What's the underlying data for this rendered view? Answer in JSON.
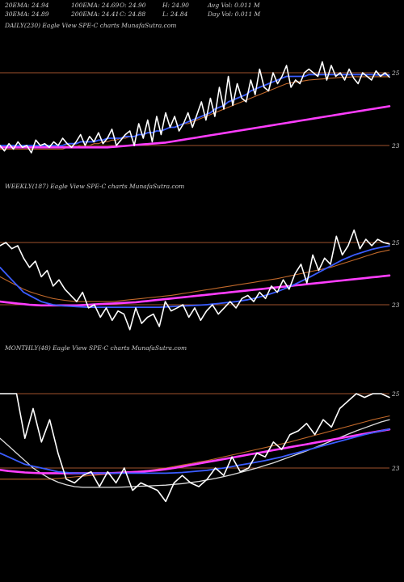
{
  "header": {
    "row1": [
      {
        "id": "ema20",
        "text": "20EMA: 24.94"
      },
      {
        "id": "ema100",
        "text": "100EMA: 24.69"
      },
      {
        "id": "open",
        "text": "O: 24.90"
      },
      {
        "id": "high",
        "text": "H: 24.90"
      },
      {
        "id": "avgvol",
        "text": "Avg Vol: 0.011 M"
      }
    ],
    "row2": [
      {
        "id": "ema30",
        "text": "30EMA: 24.89"
      },
      {
        "id": "ema200",
        "text": "200EMA: 24.41"
      },
      {
        "id": "close",
        "text": "C: 24.88"
      },
      {
        "id": "low",
        "text": "L: 24.84"
      },
      {
        "id": "dayvol",
        "text": "Day Vol: 0.011 M"
      }
    ]
  },
  "colors": {
    "background": "#000000",
    "price": "#ffffff",
    "ema_blue": "#3a5cff",
    "ema_magenta": "#ff3dff",
    "ema_orange": "#c0682a",
    "ema_white": "#dddddd",
    "reference_line": "#a0522d"
  },
  "chart_data": [
    {
      "type": "line",
      "title": "DAILY(230) Eagle View SPE-C charts MunafaSutra.com",
      "yticks": [
        "25",
        "23"
      ],
      "series": [
        {
          "key": "price",
          "values": [
            23.0,
            22.85,
            23.05,
            22.9,
            23.1,
            22.95,
            23.0,
            22.8,
            23.15,
            23.0,
            23.05,
            22.95,
            23.1,
            23.0,
            23.2,
            23.05,
            22.95,
            23.1,
            23.3,
            23.0,
            23.25,
            23.1,
            23.35,
            23.05,
            23.2,
            23.45,
            23.0,
            23.15,
            23.3,
            23.4,
            23.0,
            23.6,
            23.2,
            23.7,
            23.1,
            23.8,
            23.3,
            23.9,
            23.5,
            23.8,
            23.4,
            23.6,
            23.9,
            23.5,
            23.85,
            24.2,
            23.7,
            24.3,
            23.8,
            24.6,
            24.0,
            24.9,
            24.1,
            24.7,
            24.3,
            24.2,
            24.8,
            24.4,
            25.1,
            24.6,
            24.5,
            25.0,
            24.7,
            24.9,
            25.2,
            24.6,
            24.8,
            24.7,
            25.0,
            25.1,
            25.0,
            24.9,
            25.3,
            24.8,
            25.2,
            24.9,
            25.0,
            24.8,
            25.1,
            24.85,
            24.7,
            25.0,
            24.9,
            24.8,
            25.05,
            24.9,
            25.0,
            24.88
          ]
        },
        {
          "key": "ema_blue",
          "values": [
            23.0,
            23.0,
            23.0,
            23.0,
            23.0,
            23.0,
            23.0,
            23.0,
            23.0,
            23.0,
            23.0,
            23.0,
            23.0,
            23.0,
            23.0,
            23.05,
            23.05,
            23.05,
            23.1,
            23.1,
            23.1,
            23.1,
            23.15,
            23.15,
            23.2,
            23.2,
            23.2,
            23.2,
            23.25,
            23.25,
            23.25,
            23.3,
            23.3,
            23.35,
            23.35,
            23.4,
            23.4,
            23.45,
            23.5,
            23.5,
            23.55,
            23.6,
            23.65,
            23.7,
            23.75,
            23.8,
            23.85,
            23.9,
            24.0,
            24.05,
            24.1,
            24.2,
            24.25,
            24.3,
            24.35,
            24.4,
            24.5,
            24.55,
            24.6,
            24.65,
            24.7,
            24.75,
            24.8,
            24.85,
            24.9,
            24.9,
            24.9,
            24.9,
            24.9,
            24.95,
            24.95,
            24.95,
            24.95,
            24.95,
            24.95,
            24.95,
            24.95,
            24.95,
            24.95,
            24.95,
            24.95,
            24.95,
            24.95,
            24.95,
            24.94,
            24.94,
            24.94,
            24.94
          ]
        },
        {
          "key": "ema_orange",
          "values": [
            22.9,
            22.9,
            22.9,
            22.9,
            22.9,
            22.9,
            22.9,
            22.9,
            22.9,
            22.9,
            22.9,
            22.9,
            22.9,
            22.9,
            22.9,
            22.95,
            22.95,
            22.95,
            23.0,
            23.0,
            23.0,
            23.05,
            23.05,
            23.1,
            23.1,
            23.15,
            23.15,
            23.2,
            23.2,
            23.25,
            23.25,
            23.3,
            23.3,
            23.35,
            23.35,
            23.4,
            23.4,
            23.45,
            23.5,
            23.5,
            23.55,
            23.6,
            23.6,
            23.65,
            23.7,
            23.75,
            23.8,
            23.85,
            23.9,
            23.95,
            24.0,
            24.05,
            24.1,
            24.15,
            24.2,
            24.25,
            24.3,
            24.35,
            24.4,
            24.45,
            24.5,
            24.55,
            24.6,
            24.65,
            24.7,
            24.72,
            24.74,
            24.76,
            24.78,
            24.8,
            24.81,
            24.82,
            24.83,
            24.84,
            24.85,
            24.86,
            24.87,
            24.88,
            24.88,
            24.89,
            24.89,
            24.89,
            24.89,
            24.89,
            24.89,
            24.89,
            24.89,
            24.89
          ]
        },
        {
          "key": "ema_magenta",
          "values": [
            22.95,
            22.95,
            22.95,
            22.95,
            22.95,
            22.95,
            22.95,
            22.95,
            22.95,
            22.95,
            22.95,
            22.95,
            22.95,
            22.95,
            22.95,
            22.95,
            22.95,
            22.95,
            22.95,
            22.95,
            22.95,
            22.95,
            22.95,
            22.95,
            22.95,
            22.96,
            22.97,
            22.98,
            22.99,
            23.0,
            23.01,
            23.02,
            23.03,
            23.04,
            23.05,
            23.06,
            23.07,
            23.08,
            23.1,
            23.12,
            23.14,
            23.16,
            23.18,
            23.2,
            23.22,
            23.24,
            23.26,
            23.28,
            23.3,
            23.32,
            23.34,
            23.36,
            23.38,
            23.4,
            23.42,
            23.44,
            23.46,
            23.48,
            23.5,
            23.52,
            23.54,
            23.56,
            23.58,
            23.6,
            23.62,
            23.64,
            23.66,
            23.68,
            23.7,
            23.72,
            23.74,
            23.76,
            23.78,
            23.8,
            23.82,
            23.84,
            23.86,
            23.88,
            23.9,
            23.92,
            23.94,
            23.96,
            23.98,
            24.0,
            24.02,
            24.04,
            24.06,
            24.08
          ]
        }
      ],
      "ylim": [
        22.6,
        26.0
      ]
    },
    {
      "type": "line",
      "title": "WEEKLY(187) Eagle View SPE-C charts MunafaSutra.com",
      "yticks": [
        "25",
        "23"
      ],
      "series": [
        {
          "key": "price",
          "values": [
            24.9,
            25.0,
            24.8,
            24.9,
            24.5,
            24.2,
            24.4,
            23.9,
            24.1,
            23.6,
            23.8,
            23.5,
            23.3,
            23.1,
            23.4,
            22.9,
            23.0,
            22.6,
            22.9,
            22.5,
            22.8,
            22.7,
            22.2,
            22.9,
            22.4,
            22.6,
            22.7,
            22.3,
            23.1,
            22.8,
            22.9,
            23.0,
            22.6,
            22.9,
            22.5,
            22.8,
            23.0,
            22.7,
            22.9,
            23.1,
            22.9,
            23.2,
            23.3,
            23.1,
            23.4,
            23.2,
            23.6,
            23.4,
            23.8,
            23.5,
            24.0,
            24.3,
            23.7,
            24.6,
            24.1,
            24.5,
            24.3,
            25.2,
            24.6,
            24.9,
            25.4,
            24.8,
            25.1,
            24.9,
            25.1,
            25.0,
            24.95
          ]
        },
        {
          "key": "ema_blue",
          "values": [
            24.2,
            24.0,
            23.8,
            23.6,
            23.4,
            23.3,
            23.2,
            23.1,
            23.05,
            23.0,
            22.98,
            22.96,
            22.95,
            22.94,
            22.93,
            22.92,
            22.92,
            22.92,
            22.92,
            22.92,
            22.92,
            22.92,
            22.92,
            22.92,
            22.92,
            22.92,
            22.92,
            22.92,
            22.93,
            22.94,
            22.95,
            22.96,
            22.97,
            22.98,
            22.99,
            23.0,
            23.02,
            23.04,
            23.06,
            23.08,
            23.1,
            23.13,
            23.16,
            23.2,
            23.25,
            23.3,
            23.36,
            23.42,
            23.5,
            23.58,
            23.66,
            23.75,
            23.84,
            23.94,
            24.04,
            24.14,
            24.24,
            24.34,
            24.44,
            24.52,
            24.6,
            24.66,
            24.72,
            24.78,
            24.82,
            24.86,
            24.89
          ]
        },
        {
          "key": "ema_magenta",
          "values": [
            23.1,
            23.08,
            23.06,
            23.04,
            23.02,
            23.0,
            22.99,
            22.98,
            22.98,
            22.98,
            22.98,
            22.98,
            22.98,
            22.98,
            22.99,
            23.0,
            23.01,
            23.02,
            23.03,
            23.04,
            23.05,
            23.06,
            23.07,
            23.08,
            23.1,
            23.12,
            23.14,
            23.16,
            23.18,
            23.2,
            23.22,
            23.24,
            23.26,
            23.28,
            23.3,
            23.32,
            23.34,
            23.36,
            23.38,
            23.4,
            23.42,
            23.44,
            23.46,
            23.48,
            23.5,
            23.52,
            23.54,
            23.56,
            23.58,
            23.6,
            23.62,
            23.64,
            23.66,
            23.68,
            23.7,
            23.72,
            23.74,
            23.76,
            23.78,
            23.8,
            23.82,
            23.84,
            23.86,
            23.88,
            23.9,
            23.92,
            23.94
          ]
        },
        {
          "key": "ema_orange",
          "values": [
            23.9,
            23.8,
            23.7,
            23.6,
            23.5,
            23.42,
            23.36,
            23.3,
            23.25,
            23.2,
            23.17,
            23.14,
            23.12,
            23.1,
            23.1,
            23.1,
            23.1,
            23.1,
            23.1,
            23.1,
            23.12,
            23.14,
            23.16,
            23.18,
            23.2,
            23.22,
            23.24,
            23.26,
            23.28,
            23.3,
            23.33,
            23.36,
            23.39,
            23.42,
            23.45,
            23.48,
            23.51,
            23.54,
            23.57,
            23.6,
            23.63,
            23.66,
            23.69,
            23.72,
            23.75,
            23.78,
            23.81,
            23.84,
            23.88,
            23.92,
            23.96,
            24.0,
            24.04,
            24.08,
            24.12,
            24.16,
            24.2,
            24.26,
            24.32,
            24.38,
            24.44,
            24.5,
            24.56,
            24.62,
            24.68,
            24.72,
            24.76
          ]
        }
      ],
      "ylim": [
        22.0,
        26.0
      ]
    },
    {
      "type": "line",
      "title": "MONTHLY(48) Eagle View SPE-C charts MunafaSutra.com",
      "yticks": [
        "25",
        "23"
      ],
      "series": [
        {
          "key": "price",
          "values": [
            25.0,
            25.0,
            25.0,
            23.8,
            24.6,
            23.7,
            24.3,
            23.4,
            22.7,
            22.6,
            22.8,
            22.9,
            22.5,
            22.9,
            22.6,
            23.0,
            22.4,
            22.6,
            22.5,
            22.4,
            22.1,
            22.6,
            22.8,
            22.6,
            22.5,
            22.7,
            23.0,
            22.8,
            23.3,
            22.9,
            23.0,
            23.4,
            23.3,
            23.7,
            23.5,
            23.9,
            24.0,
            24.2,
            23.9,
            24.3,
            24.1,
            24.6,
            24.8,
            25.0,
            24.9,
            25.0,
            25.0,
            24.9
          ]
        },
        {
          "key": "ema_blue",
          "values": [
            23.4,
            23.3,
            23.2,
            23.1,
            23.05,
            23.0,
            22.95,
            22.9,
            22.88,
            22.86,
            22.86,
            22.86,
            22.86,
            22.86,
            22.86,
            22.86,
            22.86,
            22.86,
            22.86,
            22.86,
            22.86,
            22.87,
            22.88,
            22.9,
            22.92,
            22.94,
            22.97,
            23.0,
            23.04,
            23.08,
            23.12,
            23.16,
            23.2,
            23.25,
            23.3,
            23.36,
            23.42,
            23.48,
            23.54,
            23.6,
            23.66,
            23.72,
            23.78,
            23.84,
            23.9,
            23.95,
            24.0,
            24.05
          ]
        },
        {
          "key": "ema_magenta",
          "values": [
            22.95,
            22.92,
            22.9,
            22.88,
            22.87,
            22.86,
            22.86,
            22.86,
            22.86,
            22.86,
            22.86,
            22.86,
            22.86,
            22.86,
            22.87,
            22.88,
            22.89,
            22.9,
            22.92,
            22.94,
            22.97,
            23.0,
            23.04,
            23.08,
            23.12,
            23.16,
            23.2,
            23.24,
            23.28,
            23.32,
            23.36,
            23.4,
            23.44,
            23.48,
            23.52,
            23.56,
            23.6,
            23.64,
            23.68,
            23.72,
            23.76,
            23.8,
            23.84,
            23.88,
            23.92,
            23.96,
            24.0,
            24.04
          ]
        },
        {
          "key": "ema_orange",
          "values": [
            22.7,
            22.7,
            22.7,
            22.7,
            22.7,
            22.7,
            22.7,
            22.72,
            22.74,
            22.76,
            22.78,
            22.8,
            22.82,
            22.84,
            22.86,
            22.88,
            22.9,
            22.92,
            22.94,
            22.97,
            23.0,
            23.04,
            23.08,
            23.12,
            23.16,
            23.2,
            23.25,
            23.3,
            23.35,
            23.4,
            23.45,
            23.5,
            23.55,
            23.6,
            23.65,
            23.7,
            23.76,
            23.82,
            23.88,
            23.94,
            24.0,
            24.06,
            24.12,
            24.18,
            24.24,
            24.3,
            24.35,
            24.4
          ]
        },
        {
          "key": "ema_white",
          "values": [
            23.8,
            23.6,
            23.4,
            23.2,
            23.0,
            22.85,
            22.72,
            22.62,
            22.55,
            22.5,
            22.48,
            22.48,
            22.48,
            22.48,
            22.48,
            22.49,
            22.5,
            22.51,
            22.52,
            22.53,
            22.54,
            22.56,
            22.58,
            22.61,
            22.64,
            22.68,
            22.72,
            22.77,
            22.82,
            22.88,
            22.94,
            23.0,
            23.07,
            23.14,
            23.22,
            23.3,
            23.38,
            23.46,
            23.55,
            23.64,
            23.73,
            23.82,
            23.91,
            24.0,
            24.08,
            24.16,
            24.24,
            24.3
          ]
        }
      ],
      "ylim": [
        21.4,
        26.0
      ]
    }
  ]
}
